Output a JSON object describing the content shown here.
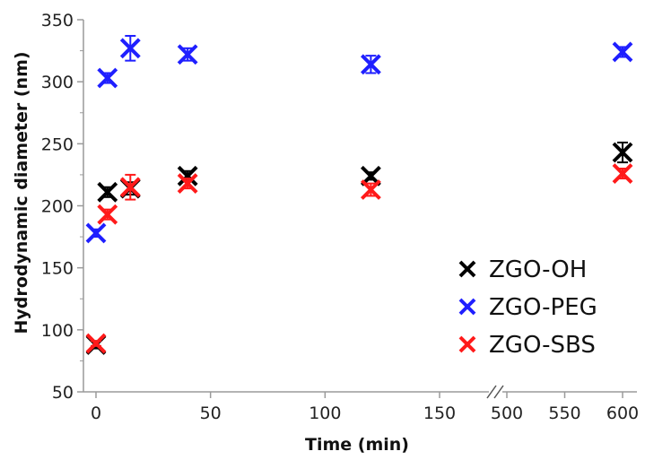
{
  "chart_data": {
    "type": "scatter",
    "title": "",
    "xlabel": "Time (min)",
    "ylabel": "Hydrodynamic diameter (nm)",
    "ylim": [
      50,
      350
    ],
    "y_ticks": [
      "50",
      "100",
      "150",
      "200",
      "250",
      "300",
      "350"
    ],
    "x_axis": {
      "broken": true,
      "segments": [
        {
          "range": [
            -5,
            175
          ],
          "ticks": [
            "0",
            "50",
            "100",
            "150"
          ]
        },
        {
          "range": [
            485,
            610
          ],
          "ticks": [
            "500",
            "550",
            "600"
          ]
        }
      ]
    },
    "grid": false,
    "legend_position": "lower-right",
    "series": [
      {
        "name": "ZGO-OH",
        "color": "#000000",
        "marker": "x",
        "points": [
          {
            "x": 0,
            "y": 88,
            "err": 3
          },
          {
            "x": 5,
            "y": 211,
            "err": 4
          },
          {
            "x": 15,
            "y": 214,
            "err": 5
          },
          {
            "x": 40,
            "y": 224,
            "err": 4
          },
          {
            "x": 120,
            "y": 224,
            "err": 3
          },
          {
            "x": 600,
            "y": 243,
            "err": 8
          }
        ]
      },
      {
        "name": "ZGO-PEG",
        "color": "#1f1fff",
        "marker": "x",
        "points": [
          {
            "x": 0,
            "y": 178,
            "err": 3
          },
          {
            "x": 5,
            "y": 303,
            "err": 4
          },
          {
            "x": 15,
            "y": 327,
            "err": 10
          },
          {
            "x": 40,
            "y": 322,
            "err": 5
          },
          {
            "x": 120,
            "y": 314,
            "err": 7
          },
          {
            "x": 600,
            "y": 324,
            "err": 4
          }
        ]
      },
      {
        "name": "ZGO-SBS",
        "color": "#ff1a1a",
        "marker": "x",
        "points": [
          {
            "x": 0,
            "y": 89,
            "err": 2
          },
          {
            "x": 5,
            "y": 193,
            "err": 4
          },
          {
            "x": 15,
            "y": 215,
            "err": 10
          },
          {
            "x": 40,
            "y": 218,
            "err": 4
          },
          {
            "x": 120,
            "y": 213,
            "err": 5
          },
          {
            "x": 600,
            "y": 226,
            "err": 4
          }
        ]
      }
    ]
  }
}
